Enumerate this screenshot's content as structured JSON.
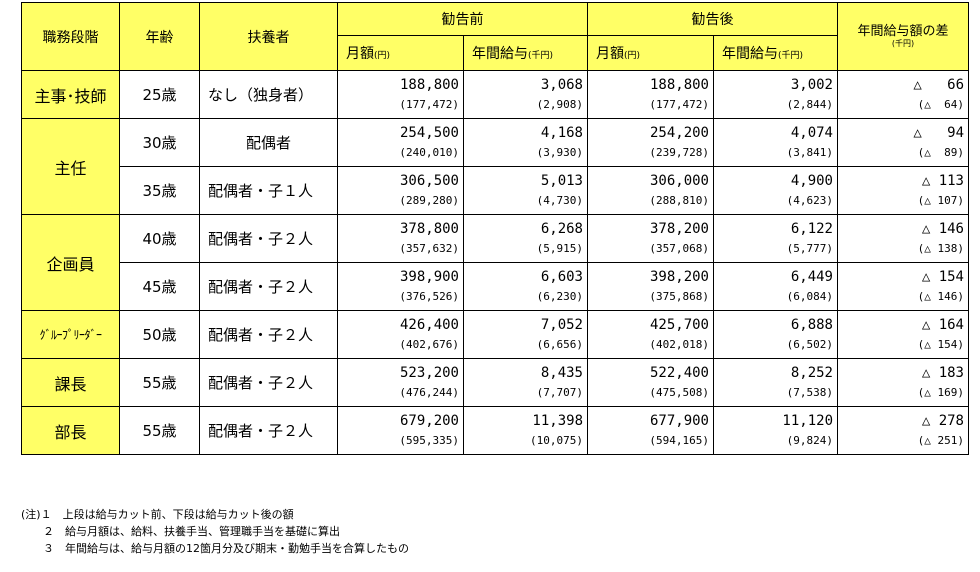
{
  "header": {
    "rank": "職務段階",
    "age": "年齢",
    "dependents": "扶養者",
    "before": "勧告前",
    "after": "勧告後",
    "monthly": "月額",
    "annual": "年間給与",
    "unit_yen": "(円)",
    "unit_thousand": "(千円)",
    "diff": "年間給与額の差",
    "diff_unit": "(千円)"
  },
  "rows": [
    {
      "rank": "主事･技師",
      "age": "25歳",
      "dep": "なし（独身者）",
      "bm": "188,800",
      "bm_sub": "(177,472)",
      "ba": "3,068",
      "ba_sub": "(2,908)",
      "am": "188,800",
      "am_sub": "(177,472)",
      "aa": "3,002",
      "aa_sub": "(2,844)",
      "d": "△   66",
      "d_sub": "(△  64)"
    },
    {
      "rank": "主任",
      "age": "30歳",
      "dep": "配偶者",
      "bm": "254,500",
      "bm_sub": "(240,010)",
      "ba": "4,168",
      "ba_sub": "(3,930)",
      "am": "254,200",
      "am_sub": "(239,728)",
      "aa": "4,074",
      "aa_sub": "(3,841)",
      "d": "△   94",
      "d_sub": "(△  89)"
    },
    {
      "rank": "",
      "age": "35歳",
      "dep": "配偶者・子１人",
      "bm": "306,500",
      "bm_sub": "(289,280)",
      "ba": "5,013",
      "ba_sub": "(4,730)",
      "am": "306,000",
      "am_sub": "(288,810)",
      "aa": "4,900",
      "aa_sub": "(4,623)",
      "d": "△ 113",
      "d_sub": "(△ 107)"
    },
    {
      "rank": "企画員",
      "age": "40歳",
      "dep": "配偶者・子２人",
      "bm": "378,800",
      "bm_sub": "(357,632)",
      "ba": "6,268",
      "ba_sub": "(5,915)",
      "am": "378,200",
      "am_sub": "(357,068)",
      "aa": "6,122",
      "aa_sub": "(5,777)",
      "d": "△ 146",
      "d_sub": "(△ 138)"
    },
    {
      "rank": "",
      "age": "45歳",
      "dep": "配偶者・子２人",
      "bm": "398,900",
      "bm_sub": "(376,526)",
      "ba": "6,603",
      "ba_sub": "(6,230)",
      "am": "398,200",
      "am_sub": "(375,868)",
      "aa": "6,449",
      "aa_sub": "(6,084)",
      "d": "△ 154",
      "d_sub": "(△ 146)"
    },
    {
      "rank": "ｸﾞﾙｰﾌﾟﾘｰﾀﾞｰ",
      "age": "50歳",
      "dep": "配偶者・子２人",
      "bm": "426,400",
      "bm_sub": "(402,676)",
      "ba": "7,052",
      "ba_sub": "(6,656)",
      "am": "425,700",
      "am_sub": "(402,018)",
      "aa": "6,888",
      "aa_sub": "(6,502)",
      "d": "△ 164",
      "d_sub": "(△ 154)"
    },
    {
      "rank": "課長",
      "age": "55歳",
      "dep": "配偶者・子２人",
      "bm": "523,200",
      "bm_sub": "(476,244)",
      "ba": "8,435",
      "ba_sub": "(7,707)",
      "am": "522,400",
      "am_sub": "(475,508)",
      "aa": "8,252",
      "aa_sub": "(7,538)",
      "d": "△ 183",
      "d_sub": "(△ 169)"
    },
    {
      "rank": "部長",
      "age": "55歳",
      "dep": "配偶者・子２人",
      "bm": "679,200",
      "bm_sub": "(595,335)",
      "ba": "11,398",
      "ba_sub": "(10,075)",
      "am": "677,900",
      "am_sub": "(594,165)",
      "aa": "11,120",
      "aa_sub": "(9,824)",
      "d": "△ 278",
      "d_sub": "(△ 251)"
    }
  ],
  "notes": [
    "(注)１　上段は給与カット前、下段は給与カット後の額",
    "　　２　給与月額は、給料、扶養手当、管理職手当を基礎に算出",
    "　　３　年間給与は、給与月額の12箇月分及び期末・勤勉手当を合算したもの"
  ]
}
